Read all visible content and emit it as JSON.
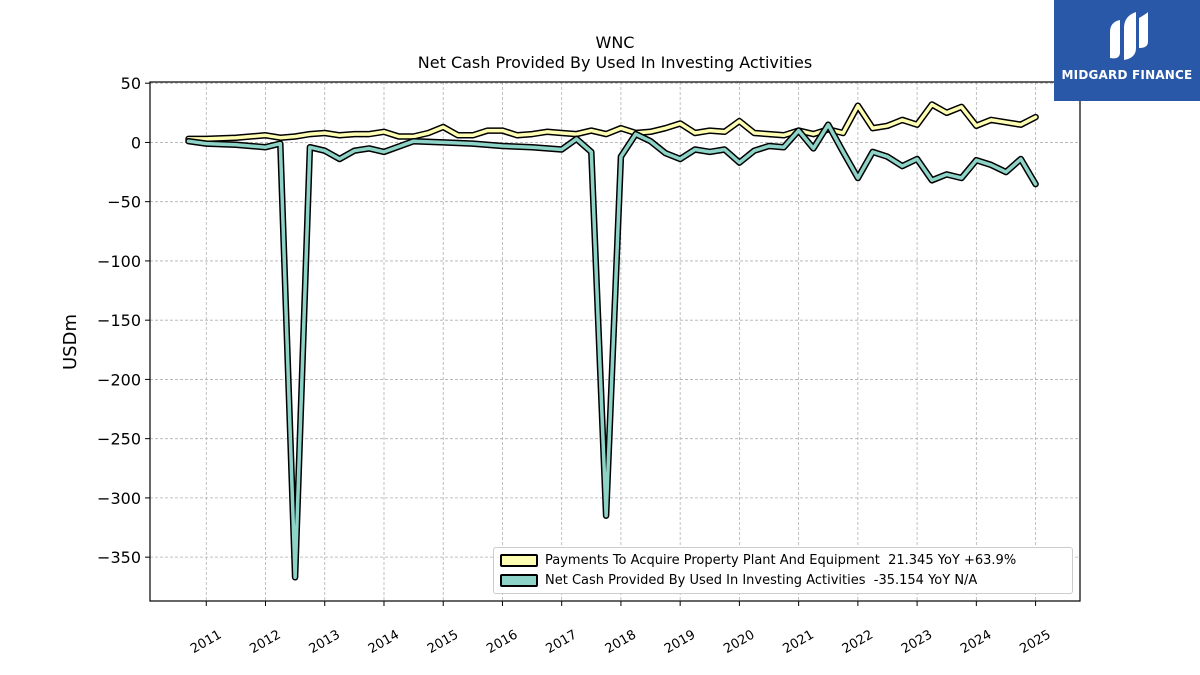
{
  "title": {
    "line1": "WNC",
    "line2": "Net Cash Provided By Used In Investing Activities"
  },
  "logo": {
    "text": "MIDGARD FINANCE",
    "color": "#2a58a8"
  },
  "legend": {
    "items": [
      {
        "label": "Payments To Acquire Property Plant And Equipment  21.345 YoY +63.9%",
        "color": "#ffffb3"
      },
      {
        "label": "Net Cash Provided By Used In Investing Activities  -35.154 YoY N/A",
        "color": "#8dd3c7"
      }
    ]
  },
  "chart_data": {
    "type": "line",
    "title": "WNC\nNet Cash Provided By Used In Investing Activities",
    "xlabel": "",
    "ylabel": "USDm",
    "xlim": [
      2010.05,
      2025.75
    ],
    "ylim": [
      -387,
      51
    ],
    "x_ticks": [
      2011,
      2012,
      2013,
      2014,
      2015,
      2016,
      2017,
      2018,
      2019,
      2020,
      2021,
      2022,
      2023,
      2024,
      2025
    ],
    "y_ticks": [
      50,
      0,
      -50,
      -100,
      -150,
      -200,
      -250,
      -300,
      -350
    ],
    "y_tick_labels": [
      "50",
      "0",
      "−50",
      "−100",
      "−150",
      "−200",
      "−250",
      "−300",
      "−350"
    ],
    "grid": true,
    "legend_position": "lower-right",
    "series": [
      {
        "name": "Payments To Acquire Property Plant And Equipment",
        "color": "#ffffb3",
        "points": [
          [
            2010.7,
            3
          ],
          [
            2011.0,
            3
          ],
          [
            2011.5,
            4
          ],
          [
            2012.0,
            6
          ],
          [
            2012.25,
            4
          ],
          [
            2012.5,
            5
          ],
          [
            2012.75,
            7
          ],
          [
            2013.0,
            8
          ],
          [
            2013.25,
            6
          ],
          [
            2013.5,
            7
          ],
          [
            2013.75,
            7
          ],
          [
            2014.0,
            9
          ],
          [
            2014.25,
            5
          ],
          [
            2014.5,
            5
          ],
          [
            2014.75,
            8
          ],
          [
            2015.0,
            13
          ],
          [
            2015.25,
            6
          ],
          [
            2015.5,
            6
          ],
          [
            2015.75,
            10
          ],
          [
            2016.0,
            10
          ],
          [
            2016.25,
            6
          ],
          [
            2016.5,
            7
          ],
          [
            2016.75,
            9
          ],
          [
            2017.0,
            8
          ],
          [
            2017.25,
            7
          ],
          [
            2017.5,
            10
          ],
          [
            2017.75,
            7
          ],
          [
            2018.0,
            12
          ],
          [
            2018.25,
            8
          ],
          [
            2018.5,
            9
          ],
          [
            2018.75,
            12
          ],
          [
            2019.0,
            16
          ],
          [
            2019.25,
            8
          ],
          [
            2019.5,
            10
          ],
          [
            2019.75,
            9
          ],
          [
            2020.0,
            18
          ],
          [
            2020.25,
            8
          ],
          [
            2020.5,
            7
          ],
          [
            2020.75,
            6
          ],
          [
            2021.0,
            10
          ],
          [
            2021.25,
            7
          ],
          [
            2021.5,
            11
          ],
          [
            2021.75,
            8
          ],
          [
            2022.0,
            31
          ],
          [
            2022.25,
            12
          ],
          [
            2022.5,
            14
          ],
          [
            2022.75,
            19
          ],
          [
            2023.0,
            15
          ],
          [
            2023.25,
            32
          ],
          [
            2023.5,
            25
          ],
          [
            2023.75,
            30
          ],
          [
            2024.0,
            14
          ],
          [
            2024.25,
            19
          ],
          [
            2024.5,
            17
          ],
          [
            2024.75,
            15
          ],
          [
            2025.0,
            21.345
          ]
        ]
      },
      {
        "name": "Net Cash Provided By Used In Investing Activities",
        "color": "#8dd3c7",
        "points": [
          [
            2010.7,
            1
          ],
          [
            2011.0,
            -1
          ],
          [
            2011.5,
            -2
          ],
          [
            2012.0,
            -4
          ],
          [
            2012.25,
            -1
          ],
          [
            2012.5,
            -367
          ],
          [
            2012.75,
            -4
          ],
          [
            2013.0,
            -7
          ],
          [
            2013.25,
            -14
          ],
          [
            2013.5,
            -7
          ],
          [
            2013.75,
            -5
          ],
          [
            2014.0,
            -8
          ],
          [
            2014.5,
            1
          ],
          [
            2015.0,
            0
          ],
          [
            2015.5,
            -1
          ],
          [
            2016.0,
            -3
          ],
          [
            2016.5,
            -4
          ],
          [
            2017.0,
            -6
          ],
          [
            2017.25,
            3
          ],
          [
            2017.5,
            -8
          ],
          [
            2017.75,
            -315
          ],
          [
            2018.0,
            -12
          ],
          [
            2018.25,
            7
          ],
          [
            2018.5,
            1
          ],
          [
            2018.75,
            -9
          ],
          [
            2019.0,
            -14
          ],
          [
            2019.25,
            -6
          ],
          [
            2019.5,
            -8
          ],
          [
            2019.75,
            -6
          ],
          [
            2020.0,
            -17
          ],
          [
            2020.25,
            -7
          ],
          [
            2020.5,
            -3
          ],
          [
            2020.75,
            -4
          ],
          [
            2021.0,
            10
          ],
          [
            2021.25,
            -5
          ],
          [
            2021.5,
            15
          ],
          [
            2021.75,
            -8
          ],
          [
            2022.0,
            -30
          ],
          [
            2022.25,
            -8
          ],
          [
            2022.5,
            -12
          ],
          [
            2022.75,
            -20
          ],
          [
            2023.0,
            -14
          ],
          [
            2023.25,
            -32
          ],
          [
            2023.5,
            -27
          ],
          [
            2023.75,
            -30
          ],
          [
            2024.0,
            -15
          ],
          [
            2024.25,
            -19
          ],
          [
            2024.5,
            -25
          ],
          [
            2024.75,
            -14
          ],
          [
            2025.0,
            -35.154
          ]
        ]
      }
    ]
  }
}
